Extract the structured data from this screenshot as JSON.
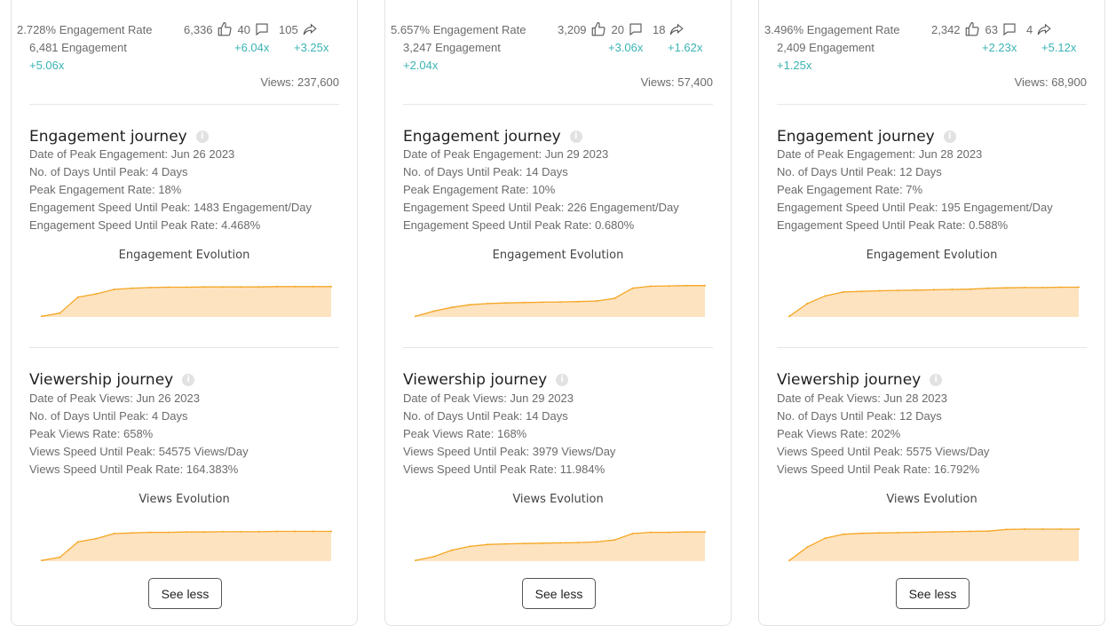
{
  "cards": [
    {
      "engagement_rate": "2.728% Engagement Rate",
      "likes": "6,336",
      "comments": "40",
      "shares": "105",
      "engagement": "6,481 Engagement",
      "comments_mult": "+6.04x",
      "shares_mult": "+3.25x",
      "engagement_mult": "+5.06x",
      "views": "Views: 237,600",
      "eng_journey": {
        "title": "Engagement journey",
        "lines": [
          "Date of Peak Engagement: Jun 26 2023",
          "No. of Days Until Peak: 4 Days",
          "Peak Engagement Rate: 18%",
          "Engagement Speed Until Peak: 1483 Engagement/Day",
          "Engagement Speed Until Peak Rate: 4.468%"
        ],
        "chart_title": "Engagement Evolution",
        "series": [
          0.02,
          0.12,
          0.62,
          0.72,
          0.86,
          0.9,
          0.92,
          0.93,
          0.93,
          0.94,
          0.94,
          0.94,
          0.94,
          0.95,
          0.95,
          0.95,
          0.95
        ]
      },
      "view_journey": {
        "title": "Viewership journey",
        "lines": [
          "Date of Peak Views: Jun 26 2023",
          "No. of Days Until Peak: 4 Days",
          "Peak Views Rate: 658%",
          "Views Speed Until Peak: 54575 Views/Day",
          "Views Speed Until Peak Rate: 164.383%"
        ],
        "chart_title": "Views Evolution",
        "series": [
          0.02,
          0.12,
          0.6,
          0.7,
          0.86,
          0.88,
          0.9,
          0.9,
          0.91,
          0.91,
          0.92,
          0.92,
          0.92,
          0.93,
          0.93,
          0.93,
          0.93
        ]
      }
    },
    {
      "engagement_rate": "5.657% Engagement Rate",
      "likes": "3,209",
      "comments": "20",
      "shares": "18",
      "engagement": "3,247 Engagement",
      "comments_mult": "+3.06x",
      "shares_mult": "+1.62x",
      "engagement_mult": "+2.04x",
      "views": "Views: 57,400",
      "eng_journey": {
        "title": "Engagement journey",
        "lines": [
          "Date of Peak Engagement: Jun 29 2023",
          "No. of Days Until Peak: 14 Days",
          "Peak Engagement Rate: 10%",
          "Engagement Speed Until Peak: 226 Engagement/Day",
          "Engagement Speed Until Peak Rate: 0.680%"
        ],
        "chart_title": "Engagement Evolution",
        "series": [
          0.02,
          0.18,
          0.3,
          0.38,
          0.42,
          0.44,
          0.45,
          0.46,
          0.47,
          0.48,
          0.5,
          0.58,
          0.9,
          0.96,
          0.97,
          0.98,
          0.98
        ]
      },
      "view_journey": {
        "title": "Viewership journey",
        "lines": [
          "Date of Peak Views: Jun 29 2023",
          "No. of Days Until Peak: 14 Days",
          "Peak Views Rate: 168%",
          "Views Speed Until Peak: 3979 Views/Day",
          "Views Speed Until Peak Rate: 11.984%"
        ],
        "chart_title": "Views Evolution",
        "series": [
          0.02,
          0.14,
          0.34,
          0.46,
          0.52,
          0.54,
          0.55,
          0.56,
          0.57,
          0.58,
          0.6,
          0.66,
          0.86,
          0.9,
          0.9,
          0.91,
          0.91
        ]
      }
    },
    {
      "engagement_rate": "3.496% Engagement Rate",
      "likes": "2,342",
      "comments": "63",
      "shares": "4",
      "engagement": "2,409 Engagement",
      "comments_mult": "+2.23x",
      "shares_mult": "+5.12x",
      "engagement_mult": "+1.25x",
      "views": "Views: 68,900",
      "eng_journey": {
        "title": "Engagement journey",
        "lines": [
          "Date of Peak Engagement: Jun 28 2023",
          "No. of Days Until Peak: 12 Days",
          "Peak Engagement Rate: 7%",
          "Engagement Speed Until Peak: 195 Engagement/Day",
          "Engagement Speed Until Peak Rate: 0.588%"
        ],
        "chart_title": "Engagement Evolution",
        "series": [
          0.02,
          0.42,
          0.66,
          0.78,
          0.8,
          0.82,
          0.83,
          0.84,
          0.85,
          0.86,
          0.87,
          0.9,
          0.91,
          0.92,
          0.92,
          0.93,
          0.93
        ]
      },
      "view_journey": {
        "title": "Viewership journey",
        "lines": [
          "Date of Peak Views: Jun 28 2023",
          "No. of Days Until Peak: 12 Days",
          "Peak Views Rate: 202%",
          "Views Speed Until Peak: 5575 Views/Day",
          "Views Speed Until Peak Rate: 16.792%"
        ],
        "chart_title": "Views Evolution",
        "series": [
          0.02,
          0.44,
          0.72,
          0.84,
          0.87,
          0.88,
          0.89,
          0.9,
          0.91,
          0.92,
          0.93,
          0.94,
          0.99,
          1.0,
          1.0,
          1.0,
          1.0
        ]
      }
    }
  ],
  "see_less_label": "See less",
  "chart_colors": {
    "line": "#f5a623",
    "fill": "#fde3c0"
  }
}
